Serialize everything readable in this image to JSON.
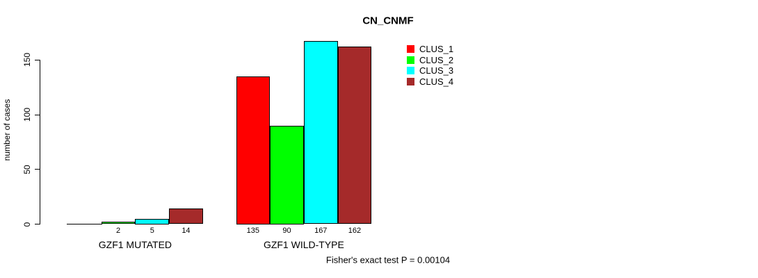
{
  "chart_data": {
    "type": "bar",
    "title": "CN_CNMF",
    "ylabel": "number of cases",
    "xlabel": "",
    "ylim": [
      0,
      150
    ],
    "yticks": [
      0,
      50,
      100,
      150
    ],
    "grid": false,
    "categories": [
      "GZF1 MUTATED",
      "GZF1 WILD-TYPE"
    ],
    "series": [
      {
        "name": "CLUS_1",
        "color": "#ff0000",
        "values": [
          0,
          135
        ],
        "bar_labels": [
          "",
          "135"
        ]
      },
      {
        "name": "CLUS_2",
        "color": "#00ff00",
        "values": [
          2,
          90
        ],
        "bar_labels": [
          "2",
          "90"
        ]
      },
      {
        "name": "CLUS_3",
        "color": "#00ffff",
        "values": [
          5,
          167
        ],
        "bar_labels": [
          "5",
          "167"
        ]
      },
      {
        "name": "CLUS_4",
        "color": "#a52a2a",
        "values": [
          14,
          162
        ],
        "bar_labels": [
          "14",
          "162"
        ]
      }
    ],
    "legend": {
      "position": "top-right",
      "entries": [
        "CLUS_1",
        "CLUS_2",
        "CLUS_3",
        "CLUS_4"
      ]
    },
    "annotation": "Fisher's exact test P = 0.00104"
  }
}
